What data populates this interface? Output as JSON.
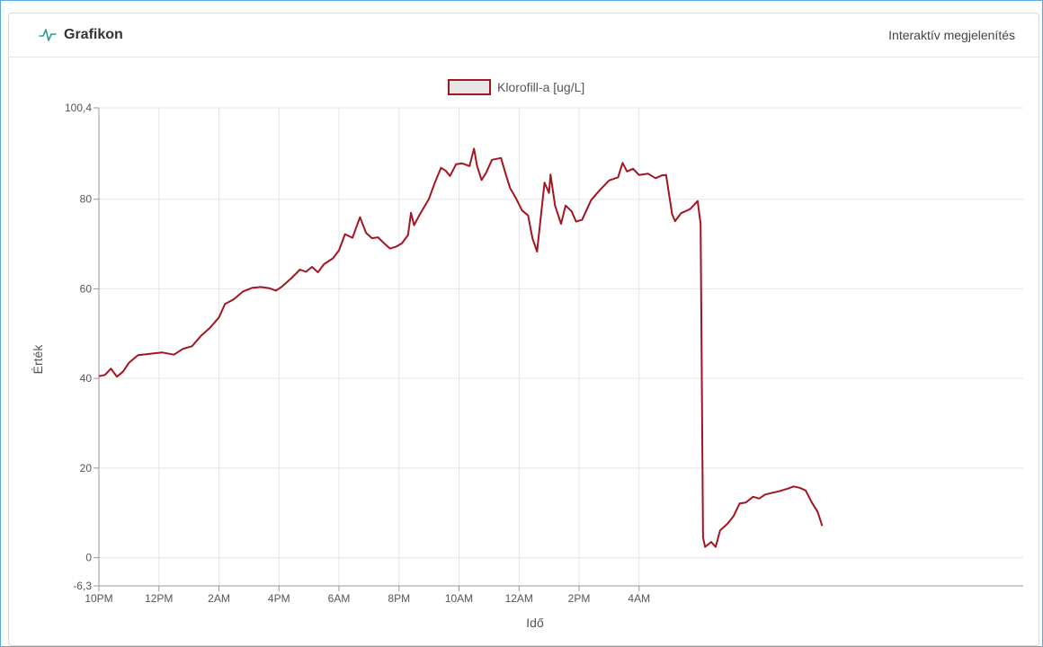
{
  "header": {
    "title": "Grafikon",
    "link_label": "Interaktív megjelenítés",
    "icon": "activity-pulse-icon",
    "accent": "#2a9d8f"
  },
  "chart_data": {
    "type": "line",
    "xlabel": "Idő",
    "ylabel": "Érték",
    "ylim": [
      -6.3,
      100.4
    ],
    "y_ticks": [
      {
        "value": 100.4,
        "label": "100,4"
      },
      {
        "value": 80,
        "label": "80"
      },
      {
        "value": 60,
        "label": "60"
      },
      {
        "value": 40,
        "label": "40"
      },
      {
        "value": 20,
        "label": "20"
      },
      {
        "value": 0,
        "label": "0"
      },
      {
        "value": -6.3,
        "label": "-6,3"
      }
    ],
    "x_range_hours": [
      0,
      30.8
    ],
    "x_ticks": [
      {
        "hour": 0,
        "label": "10PM"
      },
      {
        "hour": 2,
        "label": "12PM"
      },
      {
        "hour": 4,
        "label": "2AM"
      },
      {
        "hour": 6,
        "label": "4PM"
      },
      {
        "hour": 8,
        "label": "6AM"
      },
      {
        "hour": 10,
        "label": "8PM"
      },
      {
        "hour": 12,
        "label": "10AM"
      },
      {
        "hour": 14,
        "label": "12AM"
      },
      {
        "hour": 16,
        "label": "2PM"
      },
      {
        "hour": 18,
        "label": "4AM"
      }
    ],
    "grid": true,
    "legend_position": "top-center",
    "series": [
      {
        "name": "Klorofill-a [ug/L]",
        "color": "#a31521",
        "points": [
          [
            0.0,
            40.5
          ],
          [
            0.2,
            40.8
          ],
          [
            0.4,
            42.2
          ],
          [
            0.6,
            40.4
          ],
          [
            0.8,
            41.5
          ],
          [
            1.0,
            43.5
          ],
          [
            1.3,
            45.2
          ],
          [
            1.7,
            45.5
          ],
          [
            2.1,
            45.8
          ],
          [
            2.5,
            45.3
          ],
          [
            2.8,
            46.6
          ],
          [
            3.1,
            47.2
          ],
          [
            3.4,
            49.5
          ],
          [
            3.7,
            51.3
          ],
          [
            4.0,
            53.6
          ],
          [
            4.2,
            56.6
          ],
          [
            4.5,
            57.7
          ],
          [
            4.8,
            59.4
          ],
          [
            5.1,
            60.2
          ],
          [
            5.4,
            60.4
          ],
          [
            5.7,
            60.1
          ],
          [
            5.9,
            59.6
          ],
          [
            6.1,
            60.5
          ],
          [
            6.4,
            62.3
          ],
          [
            6.7,
            64.3
          ],
          [
            6.9,
            63.8
          ],
          [
            7.1,
            64.9
          ],
          [
            7.3,
            63.7
          ],
          [
            7.5,
            65.5
          ],
          [
            7.8,
            66.8
          ],
          [
            8.0,
            68.6
          ],
          [
            8.2,
            72.2
          ],
          [
            8.45,
            71.4
          ],
          [
            8.7,
            76.0
          ],
          [
            8.9,
            72.5
          ],
          [
            9.1,
            71.3
          ],
          [
            9.3,
            71.5
          ],
          [
            9.5,
            70.2
          ],
          [
            9.7,
            69.0
          ],
          [
            9.9,
            69.4
          ],
          [
            10.1,
            70.2
          ],
          [
            10.3,
            72.0
          ],
          [
            10.4,
            77.0
          ],
          [
            10.5,
            74.2
          ],
          [
            10.7,
            76.7
          ],
          [
            11.0,
            80.1
          ],
          [
            11.2,
            83.8
          ],
          [
            11.4,
            87.0
          ],
          [
            11.55,
            86.4
          ],
          [
            11.7,
            85.2
          ],
          [
            11.9,
            87.8
          ],
          [
            12.1,
            88.0
          ],
          [
            12.35,
            87.4
          ],
          [
            12.5,
            91.3
          ],
          [
            12.6,
            87.5
          ],
          [
            12.75,
            84.3
          ],
          [
            12.9,
            85.9
          ],
          [
            13.1,
            88.8
          ],
          [
            13.4,
            89.2
          ],
          [
            13.55,
            85.7
          ],
          [
            13.7,
            82.5
          ],
          [
            13.9,
            80.2
          ],
          [
            14.1,
            77.5
          ],
          [
            14.3,
            76.4
          ],
          [
            14.45,
            71.2
          ],
          [
            14.6,
            68.3
          ],
          [
            14.75,
            77.6
          ],
          [
            14.85,
            83.7
          ],
          [
            15.0,
            81.4
          ],
          [
            15.05,
            85.5
          ],
          [
            15.2,
            78.6
          ],
          [
            15.4,
            74.5
          ],
          [
            15.55,
            78.6
          ],
          [
            15.75,
            77.3
          ],
          [
            15.9,
            75.0
          ],
          [
            16.1,
            75.4
          ],
          [
            16.4,
            79.8
          ],
          [
            16.7,
            82.1
          ],
          [
            17.0,
            84.2
          ],
          [
            17.3,
            84.9
          ],
          [
            17.45,
            88.1
          ],
          [
            17.6,
            86.2
          ],
          [
            17.8,
            86.8
          ],
          [
            18.0,
            85.4
          ],
          [
            18.3,
            85.7
          ],
          [
            18.55,
            84.7
          ],
          [
            18.75,
            85.3
          ],
          [
            18.9,
            85.4
          ],
          [
            19.1,
            76.7
          ],
          [
            19.2,
            75.1
          ],
          [
            19.4,
            76.9
          ],
          [
            19.7,
            77.8
          ],
          [
            19.95,
            79.6
          ],
          [
            20.05,
            74.5
          ],
          [
            20.13,
            4.5
          ],
          [
            20.2,
            2.4
          ],
          [
            20.4,
            3.5
          ],
          [
            20.55,
            2.4
          ],
          [
            20.7,
            6.1
          ],
          [
            20.95,
            7.6
          ],
          [
            21.15,
            9.3
          ],
          [
            21.35,
            12.1
          ],
          [
            21.55,
            12.3
          ],
          [
            21.8,
            13.6
          ],
          [
            22.0,
            13.2
          ],
          [
            22.2,
            14.1
          ],
          [
            22.45,
            14.5
          ],
          [
            22.65,
            14.8
          ],
          [
            22.95,
            15.4
          ],
          [
            23.15,
            15.9
          ],
          [
            23.35,
            15.6
          ],
          [
            23.55,
            15.0
          ],
          [
            23.75,
            12.4
          ],
          [
            23.95,
            10.2
          ],
          [
            24.1,
            7.1
          ]
        ]
      }
    ]
  }
}
